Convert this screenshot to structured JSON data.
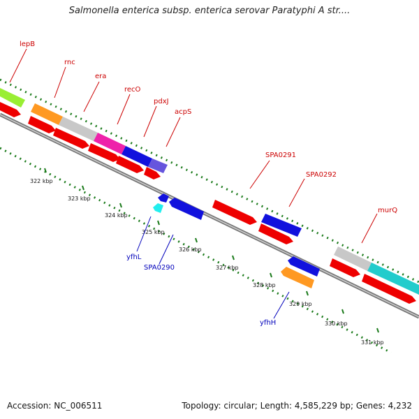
{
  "title": "Salmonella enterica subsp. enterica serovar Paratyphi A str....",
  "footer": {
    "accession": "Accession: NC_006511",
    "topology": "Topology: circular; Length: 4,585,229 bp; Genes: 4,232"
  },
  "colors": {
    "outer_gene": "#ff0000",
    "backbone": "#888888",
    "tick": "#1a7a1a",
    "label_red": "#cc0000",
    "label_blue": "#0000bb"
  },
  "top_labels": [
    "lepB",
    "rnc",
    "era",
    "recO",
    "pdxJ",
    "acpS",
    "SPA0291",
    "SPA0292",
    "murQ"
  ],
  "bottom_labels": [
    "yfhL",
    "SPA0290",
    "yfhH"
  ],
  "kbp_labels": [
    "322 kbp",
    "323 kbp",
    "324 kbp",
    "325 kbp",
    "326 kbp",
    "327 kbp",
    "328 kbp",
    "329 kbp",
    "330 kbp",
    "331 kbp"
  ],
  "cog_colors": {
    "lepB": "#99ee33",
    "rnc": "#ff9922",
    "era": "#c8c8c8",
    "recO": "#ee22aa",
    "pdxJ": "#1111dd",
    "acpS": "#6655dd",
    "SPA0291": "#1111dd",
    "SPA0292": "#c8c8c8",
    "murQ": "#22cccc",
    "yfhL": "#22eeee",
    "SPA0290": "#1111dd",
    "yfhH": "#ff9922"
  }
}
